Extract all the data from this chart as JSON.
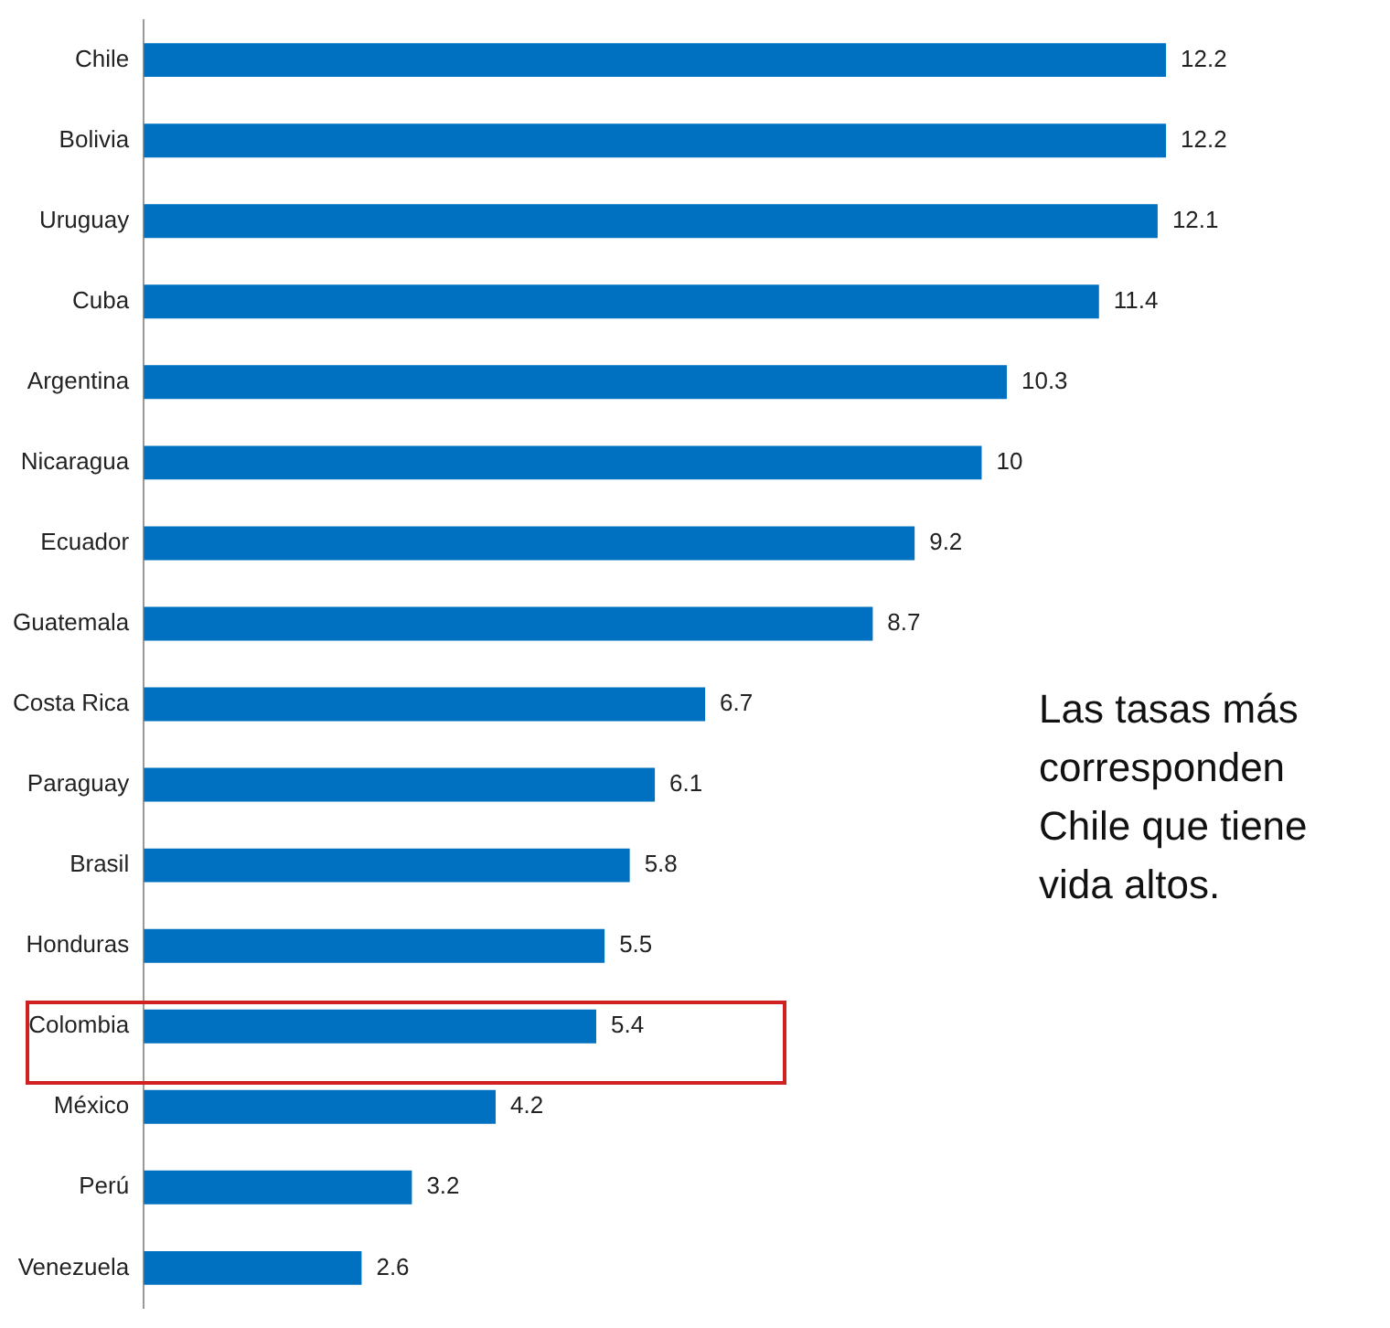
{
  "chart_data": {
    "type": "bar",
    "orientation": "horizontal",
    "categories": [
      "Chile",
      "Bolivia",
      "Uruguay",
      "Cuba",
      "Argentina",
      "Nicaragua",
      "Ecuador",
      "Guatemala",
      "Costa Rica",
      "Paraguay",
      "Brasil",
      "Honduras",
      "Colombia",
      "México",
      "Perú",
      "Venezuela"
    ],
    "values": [
      12.2,
      12.2,
      12.1,
      11.4,
      10.3,
      10,
      9.2,
      8.7,
      6.7,
      6.1,
      5.8,
      5.5,
      5.4,
      4.2,
      3.2,
      2.6
    ],
    "color": "#0070c0",
    "data_labels": true,
    "grid": false,
    "legend": false,
    "tick_labels": "y",
    "annotations": [
      "Las tasas más corresponden Chile que tiene vida altos."
    ]
  }
}
